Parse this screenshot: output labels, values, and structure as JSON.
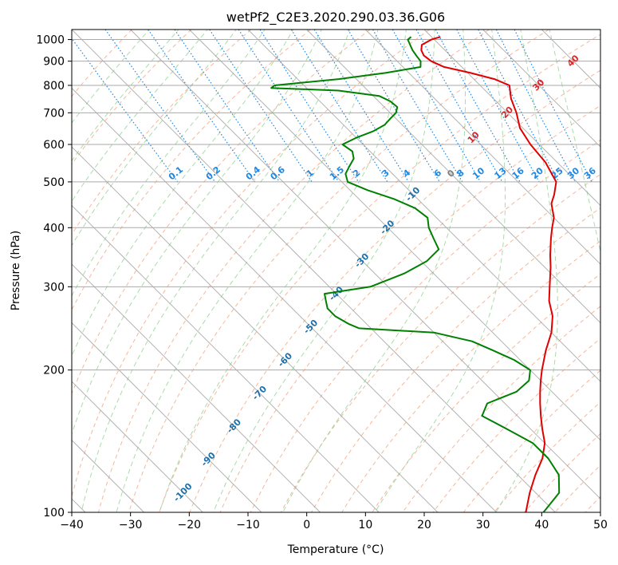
{
  "chart_data": {
    "type": "line",
    "title": "wetPf2_C2E3.2020.290.03.36.G06",
    "xlabel": "Temperature (°C)",
    "ylabel": "Pressure (hPa)",
    "xlim": [
      -40,
      50
    ],
    "ylim": [
      1050,
      100
    ],
    "y_scale": "log",
    "x_ticks": [
      "−40",
      "−30",
      "−20",
      "−10",
      "0",
      "10",
      "20",
      "30",
      "40",
      "50"
    ],
    "y_ticks": [
      "100",
      "200",
      "300",
      "400",
      "500",
      "600",
      "700",
      "800",
      "900",
      "1000"
    ],
    "grid": true,
    "series": [
      {
        "color": "#e00000",
        "points": [
          [
            1013,
            21.5
          ],
          [
            1000,
            19.5
          ],
          [
            975,
            17
          ],
          [
            950,
            16
          ],
          [
            925,
            15.5
          ],
          [
            900,
            15.8
          ],
          [
            875,
            17
          ],
          [
            850,
            20.5
          ],
          [
            825,
            23.5
          ],
          [
            800,
            25
          ],
          [
            775,
            24
          ],
          [
            750,
            23
          ],
          [
            700,
            21.5
          ],
          [
            650,
            19.5
          ],
          [
            600,
            18.5
          ],
          [
            550,
            18
          ],
          [
            500,
            16.5
          ],
          [
            470,
            14
          ],
          [
            450,
            12
          ],
          [
            420,
            10
          ],
          [
            400,
            8
          ],
          [
            380,
            6
          ],
          [
            350,
            3
          ],
          [
            330,
            1
          ],
          [
            300,
            -2.5
          ],
          [
            280,
            -5
          ],
          [
            260,
            -7
          ],
          [
            240,
            -10
          ],
          [
            220,
            -14
          ],
          [
            200,
            -18
          ],
          [
            190,
            -20
          ],
          [
            180,
            -22
          ],
          [
            170,
            -24
          ],
          [
            160,
            -26
          ],
          [
            150,
            -28
          ],
          [
            140,
            -30
          ],
          [
            130,
            -33
          ],
          [
            120,
            -37
          ],
          [
            110,
            -41
          ],
          [
            100,
            -45
          ]
        ]
      },
      {
        "color": "#008000",
        "points": [
          [
            1013,
            16.5
          ],
          [
            1000,
            15.5
          ],
          [
            975,
            15
          ],
          [
            950,
            14.5
          ],
          [
            925,
            14.2
          ],
          [
            900,
            14
          ],
          [
            875,
            13
          ],
          [
            850,
            6
          ],
          [
            825,
            -3
          ],
          [
            800,
            -15
          ],
          [
            790,
            -16
          ],
          [
            780,
            -5
          ],
          [
            760,
            1
          ],
          [
            740,
            2
          ],
          [
            720,
            2.2
          ],
          [
            700,
            1
          ],
          [
            680,
            -1
          ],
          [
            660,
            -3
          ],
          [
            640,
            -6
          ],
          [
            620,
            -10
          ],
          [
            600,
            -13.5
          ],
          [
            580,
            -13
          ],
          [
            560,
            -14
          ],
          [
            540,
            -16
          ],
          [
            520,
            -18
          ],
          [
            500,
            -19
          ],
          [
            480,
            -17
          ],
          [
            460,
            -14
          ],
          [
            440,
            -12
          ],
          [
            420,
            -11.5
          ],
          [
            400,
            -13
          ],
          [
            380,
            -14
          ],
          [
            360,
            -15
          ],
          [
            340,
            -19
          ],
          [
            320,
            -25
          ],
          [
            300,
            -33
          ],
          [
            290,
            -42
          ],
          [
            280,
            -43
          ],
          [
            270,
            -44
          ],
          [
            260,
            -44
          ],
          [
            250,
            -43
          ],
          [
            245,
            -42
          ],
          [
            240,
            -30
          ],
          [
            230,
            -25
          ],
          [
            220,
            -23
          ],
          [
            210,
            -21
          ],
          [
            200,
            -20
          ],
          [
            190,
            -22
          ],
          [
            180,
            -26
          ],
          [
            170,
            -33
          ],
          [
            160,
            -36
          ],
          [
            150,
            -34
          ],
          [
            140,
            -32
          ],
          [
            130,
            -32
          ],
          [
            120,
            -33
          ],
          [
            110,
            -36
          ],
          [
            100,
            -42
          ]
        ]
      }
    ],
    "isotherm_labels": [
      "-100",
      "-90",
      "-80",
      "-70",
      "-60",
      "-50",
      "-40",
      "-30",
      "-20",
      "-10",
      "0",
      "10",
      "20",
      "30",
      "40"
    ],
    "mixing_ratio_labels": [
      "0.1",
      "0.2",
      "0.4",
      "0.6",
      "1",
      "1.5",
      "2",
      "3",
      "4",
      "6",
      "8",
      "10",
      "13",
      "16",
      "20",
      "25",
      "30",
      "36"
    ],
    "colors": {
      "temperature": "#e00000",
      "dewpoint": "#008000",
      "isotherm": "#999999",
      "isobar": "#aaaaaa",
      "dry_adiabat": "#f4a582",
      "moist_adiabat": "#8fcf8f",
      "mixing_ratio": "#1e88e5",
      "cold_label": "#1f6fa8",
      "zero_label": "#808080",
      "warm_label": "#d62728"
    }
  }
}
